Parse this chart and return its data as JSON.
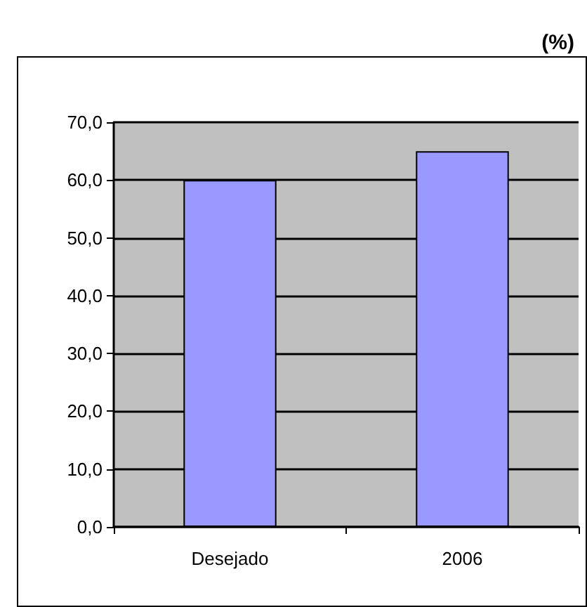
{
  "chart_data": {
    "type": "bar",
    "title": "(%)",
    "categories": [
      "Desejado",
      "2006"
    ],
    "series": [
      {
        "color": "#9999ff",
        "values": [
          60,
          65
        ]
      }
    ],
    "ylim": [
      0,
      70
    ],
    "yticks": [
      {
        "value": 0,
        "label": "0,0"
      },
      {
        "value": 10,
        "label": "10,0"
      },
      {
        "value": 20,
        "label": "20,0"
      },
      {
        "value": 30,
        "label": "30,0"
      },
      {
        "value": 40,
        "label": "40,0"
      },
      {
        "value": 50,
        "label": "50,0"
      },
      {
        "value": 60,
        "label": "60,0"
      },
      {
        "value": 70,
        "label": "70,0"
      }
    ],
    "grid": "y"
  }
}
